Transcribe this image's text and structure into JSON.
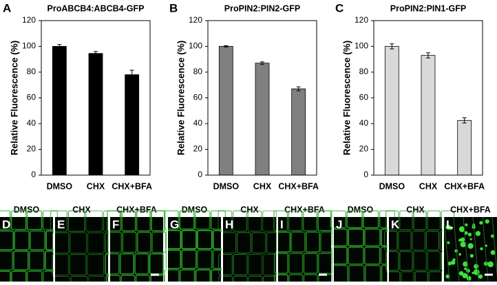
{
  "chart_data": [
    {
      "type": "bar",
      "panel": "A",
      "title": "ProABCB4:ABCB4-GFP",
      "y_label": "Relative Fluorescence (%)",
      "categories": [
        "DMSO",
        "CHX",
        "CHX+BFA"
      ],
      "values": [
        100,
        94.5,
        78
      ],
      "errors": [
        1.5,
        1.5,
        3.5
      ],
      "color": "#000000",
      "ylim": [
        0,
        120
      ],
      "yticks": [
        0,
        20,
        40,
        60,
        80,
        100,
        120
      ]
    },
    {
      "type": "bar",
      "panel": "B",
      "title": "ProPIN2:PIN2-GFP",
      "y_label": "Relative Fluorescence (%)",
      "categories": [
        "DMSO",
        "CHX",
        "CHX+BFA"
      ],
      "values": [
        100,
        87,
        67
      ],
      "errors": [
        0.5,
        1,
        1.5
      ],
      "color": "#808080",
      "ylim": [
        0,
        120
      ],
      "yticks": [
        0,
        20,
        40,
        60,
        80,
        100,
        120
      ]
    },
    {
      "type": "bar",
      "panel": "C",
      "title": "ProPIN2:PIN1-GFP",
      "y_label": "Relative Fluorescence (%)",
      "categories": [
        "DMSO",
        "CHX",
        "CHX+BFA"
      ],
      "values": [
        100,
        93,
        42.5
      ],
      "errors": [
        2,
        2,
        2
      ],
      "color": "#d9d9d9",
      "ylim": [
        0,
        120
      ],
      "yticks": [
        0,
        20,
        40,
        60,
        80,
        100,
        120
      ]
    }
  ],
  "image_panels": [
    {
      "label": "D",
      "caption": "DMSO"
    },
    {
      "label": "E",
      "caption": "CHX"
    },
    {
      "label": "F",
      "caption": "CHX+BFA"
    },
    {
      "label": "G",
      "caption": "DMSO"
    },
    {
      "label": "H",
      "caption": "CHX"
    },
    {
      "label": "I",
      "caption": "CHX+BFA"
    },
    {
      "label": "J",
      "caption": "DMSO"
    },
    {
      "label": "K",
      "caption": "CHX"
    },
    {
      "label": "L",
      "caption": "CHX+BFA"
    }
  ]
}
